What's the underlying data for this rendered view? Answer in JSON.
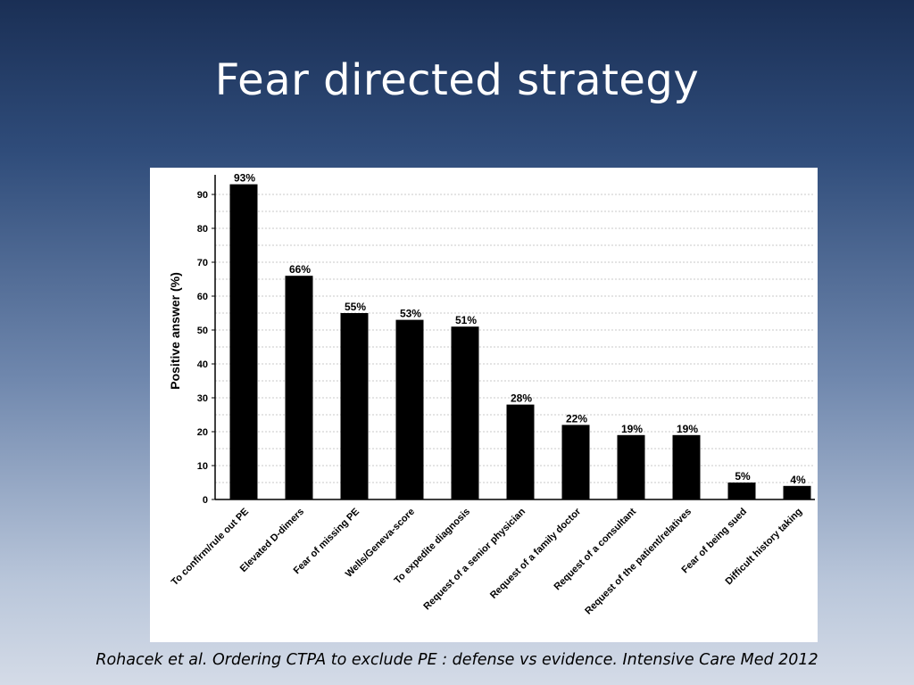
{
  "slide": {
    "title": "Fear directed strategy",
    "citation": "Rohacek et al.  Ordering CTPA to exclude PE : defense vs evidence. Intensive Care Med 2012"
  },
  "chart_data": {
    "type": "bar",
    "title": "",
    "xlabel": "",
    "ylabel": "Positive answer (%)",
    "ylim": [
      0,
      95
    ],
    "yticks": [
      0,
      10,
      20,
      30,
      40,
      50,
      60,
      70,
      80,
      90
    ],
    "grid": true,
    "categories": [
      "To confirm/rule out PE",
      "Elevated D-dimers",
      "Fear of missing PE",
      "Wells/Geneva-score",
      "To expedite diagnosis",
      "Request of a senior physician",
      "Request of a family doctor",
      "Request of a consultant",
      "Request of the patient/relatives",
      "Fear of being sued",
      "Difficult history taking"
    ],
    "values": [
      93,
      66,
      55,
      53,
      51,
      28,
      22,
      19,
      19,
      5,
      4
    ],
    "data_labels": [
      "93%",
      "66%",
      "55%",
      "53%",
      "51%",
      "28%",
      "22%",
      "19%",
      "19%",
      "5%",
      "4%"
    ],
    "bar_color": "#000000"
  }
}
